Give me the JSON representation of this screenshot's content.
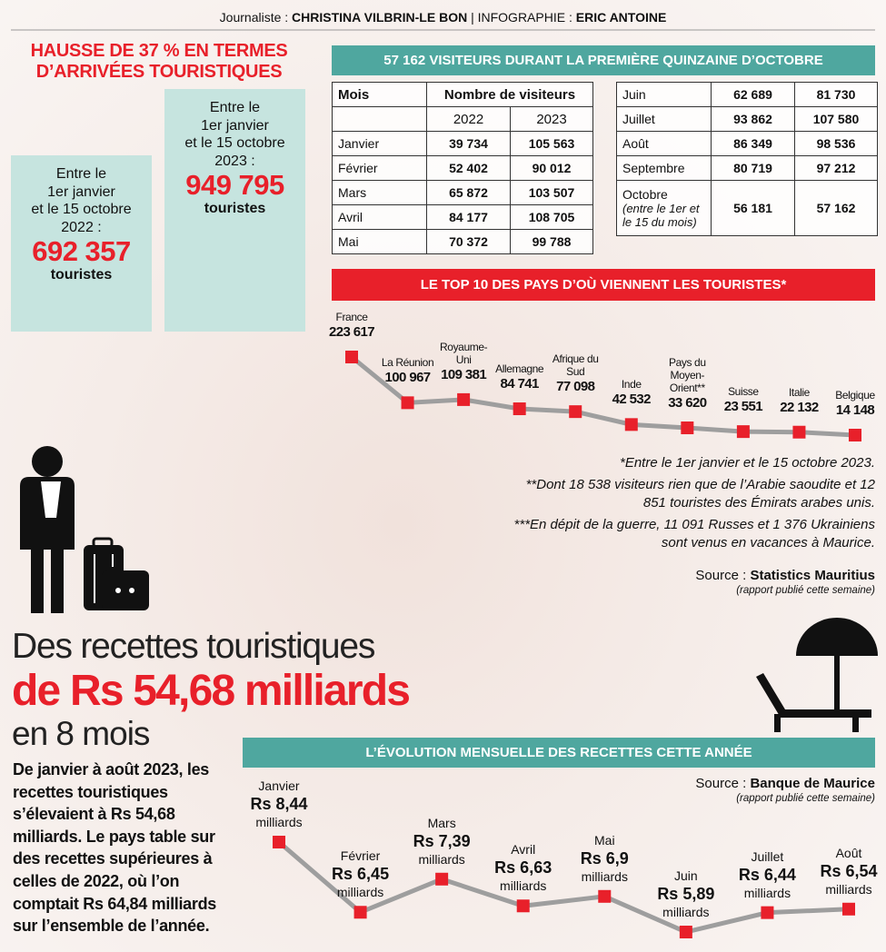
{
  "credit": {
    "label1": "Journaliste :",
    "name1": "CHRISTINA VILBRIN-LE BON",
    "label2": "| INFOGRAPHIE :",
    "name2": "ERIC ANTOINE"
  },
  "headline": [
    "HAUSSE DE 37 % EN TERMES",
    "D’ARRIVÉES TOURISTIQUES"
  ],
  "totals": [
    {
      "lines": [
        "Entre le",
        "1er janvier",
        "et le 15 octobre",
        "2022 :"
      ],
      "figure": "692 357",
      "unit": "touristes"
    },
    {
      "lines": [
        "Entre le",
        "1er janvier",
        "et le 15 octobre",
        "2023 :"
      ],
      "figure": "949 795",
      "unit": "touristes"
    }
  ],
  "visitors_table": {
    "title": "57 162 VISITEURS DURANT LA PREMIÈRE QUINZAINE D’OCTOBRE",
    "header": [
      "Mois",
      "Nombre de visiteurs"
    ],
    "years": [
      "2022",
      "2023"
    ],
    "rows": [
      [
        "Janvier",
        "39 734",
        "105 563"
      ],
      [
        "Février",
        "52 402",
        "90 012"
      ],
      [
        "Mars",
        "65 872",
        "103 507"
      ],
      [
        "Avril",
        "84 177",
        "108 705"
      ],
      [
        "Mai",
        "70 372",
        "99 788"
      ],
      [
        "Juin",
        "62 689",
        "81 730"
      ],
      [
        "Juillet",
        "93 862",
        "107 580"
      ],
      [
        "Août",
        "86 349",
        "98 536"
      ],
      [
        "Septembre",
        "80 719",
        "97 212"
      ],
      [
        "Octobre",
        "56 181",
        "57 162"
      ]
    ],
    "october_note": "(entre le 1er et le 15 du mois)"
  },
  "chart_data": [
    {
      "type": "line",
      "title": "LE TOP 10 DES PAYS D’OÙ VIENNENT LES TOURISTES*",
      "categories": [
        "France",
        "La Réunion",
        "Royaume-Uni",
        "Allemagne",
        "Afrique du Sud",
        "Inde",
        "Pays du Moyen-Orient**",
        "Suisse",
        "Italie",
        "Belgique"
      ],
      "values": [
        223617,
        100967,
        109381,
        84741,
        77098,
        42532,
        33620,
        23551,
        22132,
        14148
      ],
      "value_labels": [
        "223 617",
        "100 967",
        "109 381",
        "84 741",
        "77 098",
        "42 532",
        "33 620",
        "23 551",
        "22 132",
        "14 148"
      ],
      "line_color": "#9e9e9e",
      "marker_color": "#e8202a"
    },
    {
      "type": "line",
      "title": "L’ÉVOLUTION MENSUELLE DES RECETTES CETTE ANNÉE",
      "categories": [
        "Janvier",
        "Février",
        "Mars",
        "Avril",
        "Mai",
        "Juin",
        "Juillet",
        "Août"
      ],
      "values": [
        8.44,
        6.45,
        7.39,
        6.63,
        6.9,
        5.89,
        6.44,
        6.54
      ],
      "value_labels": [
        "Rs 8,44",
        "Rs 6,45",
        "Rs 7,39",
        "Rs 6,63",
        "Rs 6,9",
        "Rs 5,89",
        "Rs 6,44",
        "Rs 6,54"
      ],
      "unit_label": "milliards",
      "line_color": "#9e9e9e",
      "marker_color": "#e8202a"
    }
  ],
  "notes": [
    "*Entre le 1er janvier et le 15 octobre 2023.",
    "**Dont 18 538 visiteurs rien que de l’Arabie saoudite et 12 851 touristes des Émirats arabes unis.",
    "***En dépit de la guerre, 11 091 Russes et 1 376 Ukrainiens sont venus en vacances à Maurice."
  ],
  "sources": [
    {
      "label": "Source :",
      "name": "Statistics Mauritius",
      "detail": "(rapport publié cette semaine)"
    },
    {
      "label": "Source :",
      "name": "Banque de Maurice",
      "detail": "(rapport publié cette semaine)"
    }
  ],
  "revenue": {
    "line1": "Des recettes touristiques",
    "line2": "de Rs 54,68 milliards",
    "line3": "en 8 mois",
    "text": "De janvier à août 2023, les recettes touristiques s’élevaient à Rs 54,68 milliards. Le pays table sur des recettes supérieures à celles de 2022, où l’on comptait Rs 64,84 milliards sur l’ensemble de l’année."
  }
}
